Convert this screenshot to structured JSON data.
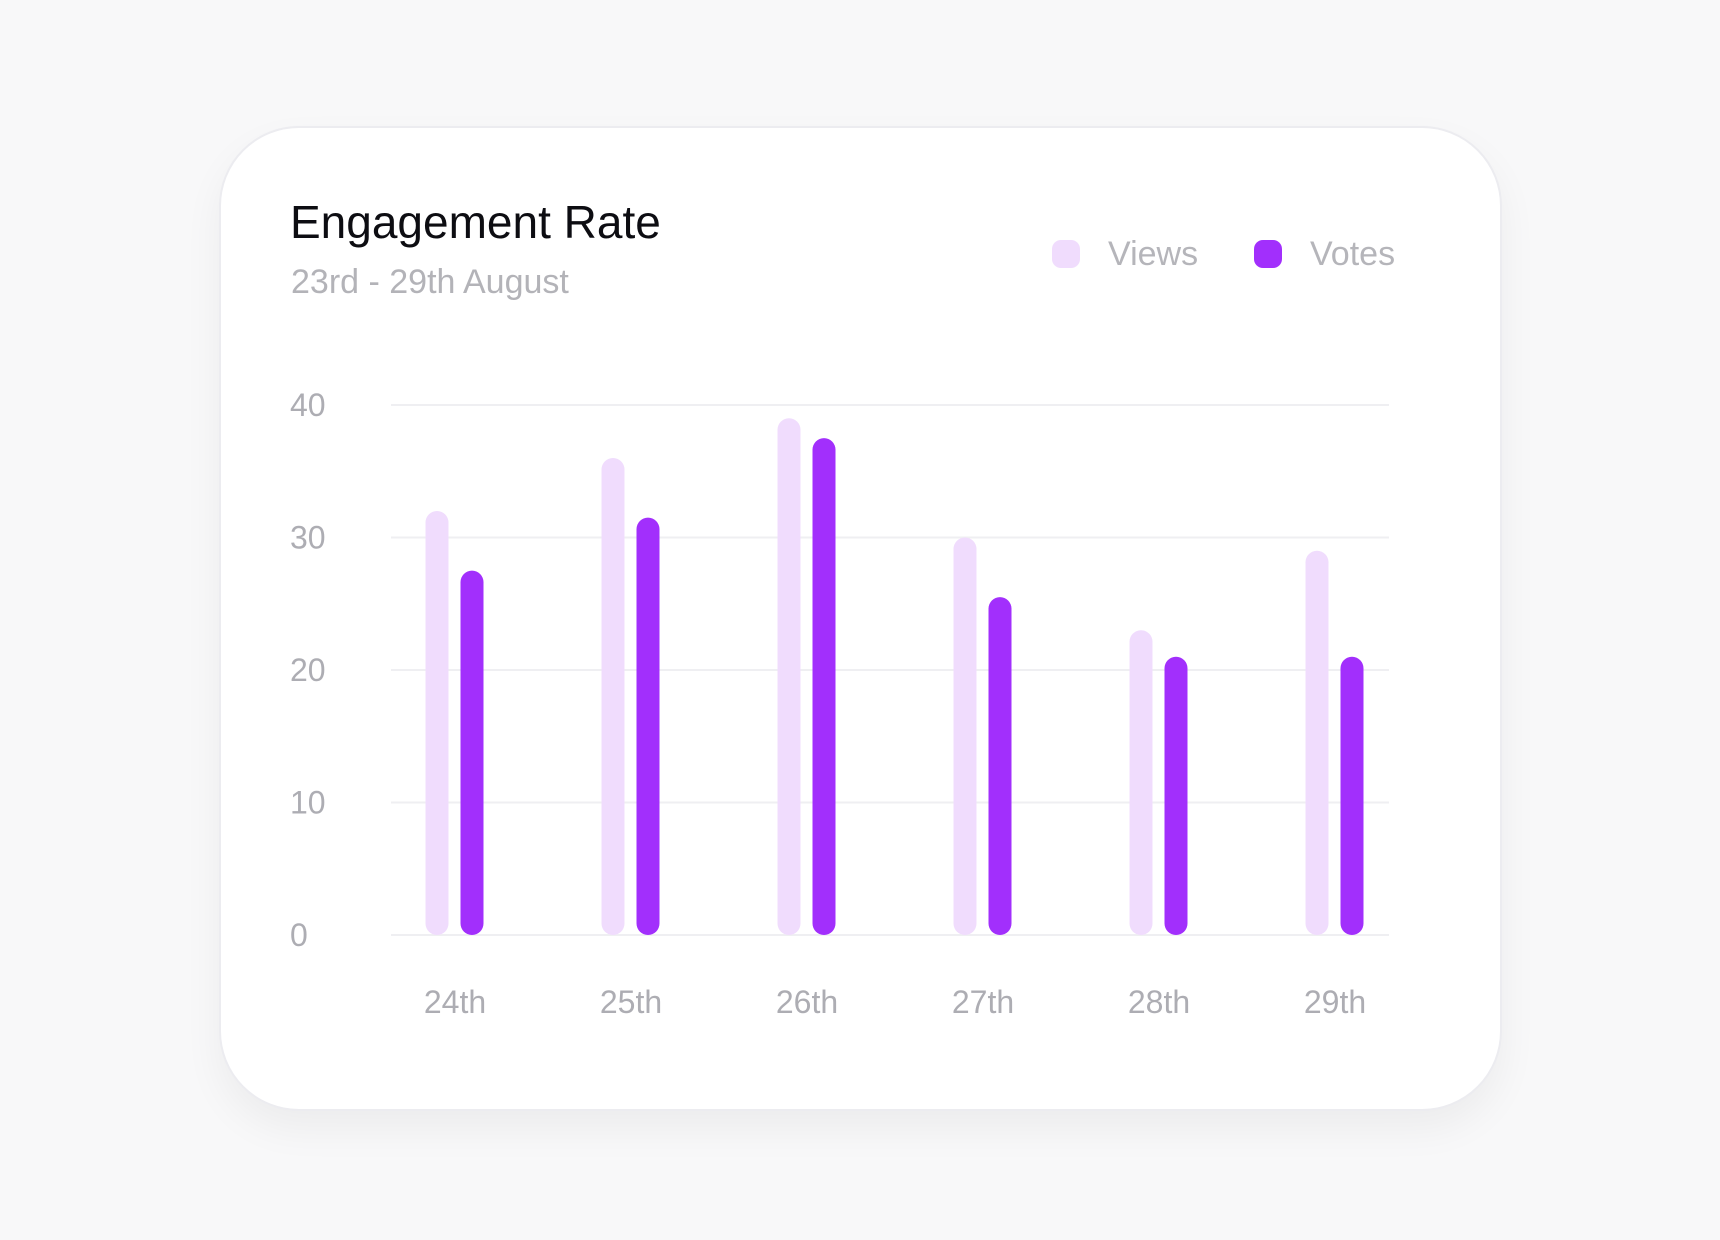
{
  "chart_data": {
    "type": "bar",
    "title": "Engagement Rate",
    "subtitle": "23rd - 29th August",
    "categories": [
      "24th",
      "25th",
      "26th",
      "27th",
      "28th",
      "29th"
    ],
    "series": [
      {
        "name": "Views",
        "color": "#f0dcfd",
        "values": [
          32,
          36,
          39,
          30,
          23,
          29
        ]
      },
      {
        "name": "Votes",
        "color": "#a22ffc",
        "values": [
          27.5,
          31.5,
          37.5,
          25.5,
          21,
          21
        ]
      }
    ],
    "ylim": [
      0,
      40
    ],
    "yticks": [
      "0",
      "10",
      "20",
      "30",
      "40"
    ],
    "grid": true,
    "legend_position": "top-right"
  }
}
